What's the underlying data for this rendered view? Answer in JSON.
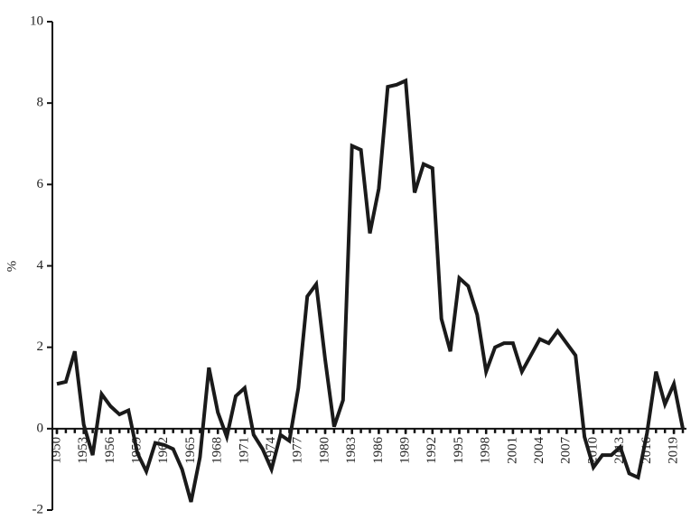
{
  "chart_data": {
    "type": "line",
    "y_label": "%",
    "x": [
      1950,
      1951,
      1952,
      1953,
      1954,
      1955,
      1956,
      1957,
      1958,
      1959,
      1960,
      1961,
      1962,
      1963,
      1964,
      1965,
      1966,
      1967,
      1968,
      1969,
      1970,
      1971,
      1972,
      1973,
      1974,
      1975,
      1976,
      1977,
      1978,
      1979,
      1980,
      1981,
      1982,
      1983,
      1984,
      1985,
      1986,
      1987,
      1988,
      1989,
      1990,
      1991,
      1992,
      1993,
      1994,
      1995,
      1996,
      1997,
      1998,
      1999,
      2000,
      2001,
      2002,
      2003,
      2004,
      2005,
      2006,
      2007,
      2008,
      2009,
      2010,
      2011,
      2012,
      2013,
      2014,
      2015,
      2016,
      2017,
      2018,
      2019,
      2020
    ],
    "series": [
      {
        "color": "#1a1a1a",
        "values": [
          1.1,
          1.15,
          1.9,
          0.1,
          -0.65,
          0.85,
          0.55,
          0.35,
          0.45,
          -0.6,
          -1.05,
          -0.35,
          -0.4,
          -0.5,
          -1.0,
          -1.8,
          -0.7,
          1.5,
          0.4,
          -0.2,
          0.8,
          1.0,
          -0.15,
          -0.5,
          -1.0,
          -0.15,
          -0.3,
          1.0,
          3.25,
          3.55,
          1.7,
          0.05,
          0.7,
          6.95,
          6.85,
          4.8,
          5.9,
          8.4,
          8.45,
          8.55,
          5.8,
          6.5,
          6.4,
          2.7,
          1.9,
          3.7,
          3.5,
          2.8,
          1.4,
          2.0,
          2.1,
          2.1,
          1.4,
          1.8,
          2.2,
          2.1,
          2.4,
          2.1,
          1.8,
          -0.2,
          -0.95,
          -0.65,
          -0.65,
          -0.45,
          -1.1,
          -1.2,
          -0.1,
          1.4,
          0.6,
          1.1,
          0.0
        ]
      }
    ],
    "xlim": [
      1950,
      2020
    ],
    "xticks": [
      1950,
      1953,
      1956,
      1959,
      1962,
      1965,
      1968,
      1971,
      1974,
      1977,
      1980,
      1983,
      1986,
      1989,
      1992,
      1995,
      1998,
      2001,
      2004,
      2007,
      2010,
      2013,
      2016,
      2019
    ],
    "ylim": [
      -2,
      10
    ],
    "yticks": [
      -2,
      0,
      2,
      4,
      6,
      8,
      10
    ]
  }
}
